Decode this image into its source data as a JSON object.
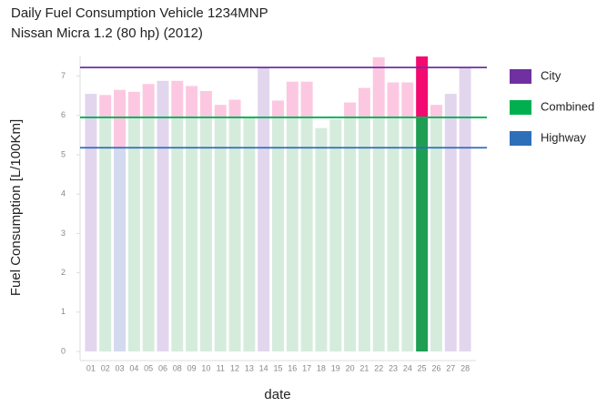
{
  "chart_data": {
    "type": "bar",
    "title": "Daily Fuel Consumption Vehicle 1234MNP",
    "subtitle": "Nissan Micra 1.2 (80 hp) (2012)",
    "x_label": "date",
    "y_label": "Fuel Consumption [L/100Km]",
    "categories": [
      "01",
      "02",
      "03",
      "04",
      "05",
      "06",
      "08",
      "09",
      "10",
      "11",
      "12",
      "13",
      "14",
      "15",
      "16",
      "17",
      "18",
      "19",
      "20",
      "21",
      "22",
      "23",
      "24",
      "25",
      "26",
      "27",
      "28"
    ],
    "values": [
      6.55,
      6.52,
      6.65,
      6.6,
      6.8,
      6.88,
      6.88,
      6.75,
      6.62,
      6.27,
      6.4,
      5.95,
      7.22,
      6.38,
      6.86,
      6.86,
      5.68,
      5.9,
      6.33,
      6.7,
      7.48,
      6.84,
      6.84,
      7.5,
      6.27,
      6.55,
      7.22
    ],
    "trip_types": [
      "City",
      "Combined",
      "Highway",
      "Combined",
      "Combined",
      "City",
      "Combined",
      "Combined",
      "Combined",
      "Combined",
      "Combined",
      "Combined",
      "City",
      "Combined",
      "Combined",
      "Combined",
      "Combined",
      "Combined",
      "Combined",
      "Combined",
      "Combined",
      "Combined",
      "Combined",
      "Combined",
      "Combined",
      "City",
      "City"
    ],
    "reference_lines": [
      {
        "name": "City",
        "value": 7.22,
        "color": "#7030a0",
        "fill": "#e2d6ee"
      },
      {
        "name": "Combined",
        "value": 5.95,
        "color": "#00b050",
        "fill": "#d5ecdd"
      },
      {
        "name": "Highway",
        "value": 5.18,
        "color": "#2e6fba",
        "fill": "#d3d9ef"
      }
    ],
    "excess_color": "#fcc8e1",
    "selected_category": "25",
    "selected_colors": {
      "base": "#1e9e52",
      "excess": "#f20a70"
    },
    "ylim": [
      0,
      7.5
    ],
    "yticks": [
      0,
      1,
      2,
      3,
      4,
      5,
      6,
      7
    ]
  }
}
